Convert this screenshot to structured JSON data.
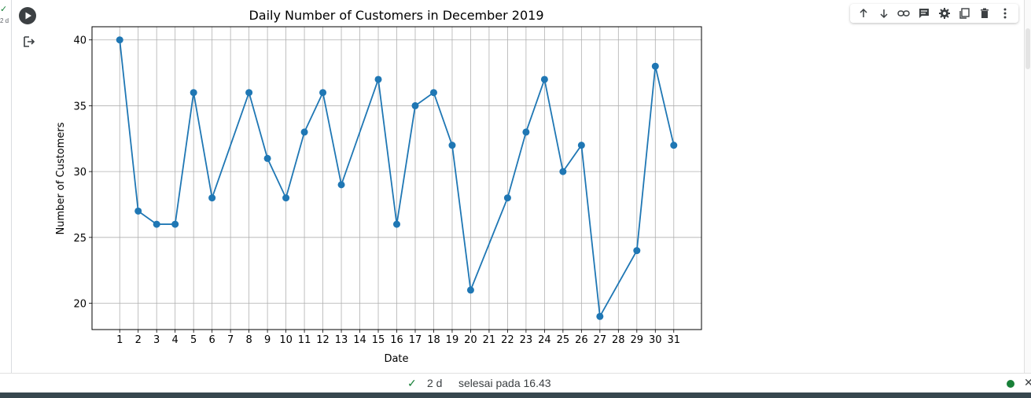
{
  "cell": {
    "exec_check": "✓",
    "exec_count": "2 d"
  },
  "toolbar": {
    "icons": [
      "arrow-up-icon",
      "arrow-down-icon",
      "link-icon",
      "comment-icon",
      "gear-icon",
      "mirror-cell-icon",
      "delete-icon",
      "more-vert-icon"
    ]
  },
  "status": {
    "check": "✓",
    "duration": "2 d",
    "message": "selesai pada 16.43",
    "dot_color": "#188038"
  },
  "chart_data": {
    "type": "line",
    "title": "Daily Number of Customers in December 2019",
    "xlabel": "Date",
    "ylabel": "Number of Customers",
    "x": [
      1,
      2,
      3,
      4,
      5,
      6,
      7,
      8,
      9,
      10,
      11,
      12,
      13,
      14,
      15,
      16,
      17,
      18,
      19,
      20,
      21,
      22,
      23,
      24,
      25,
      26,
      27,
      28,
      29,
      30,
      31
    ],
    "points": [
      {
        "x": 1,
        "y": 40
      },
      {
        "x": 2,
        "y": 27
      },
      {
        "x": 3,
        "y": 26
      },
      {
        "x": 4,
        "y": 26
      },
      {
        "x": 5,
        "y": 36
      },
      {
        "x": 6,
        "y": 28
      },
      {
        "x": 8,
        "y": 36
      },
      {
        "x": 9,
        "y": 31
      },
      {
        "x": 10,
        "y": 28
      },
      {
        "x": 11,
        "y": 33
      },
      {
        "x": 12,
        "y": 36
      },
      {
        "x": 13,
        "y": 29
      },
      {
        "x": 15,
        "y": 37
      },
      {
        "x": 16,
        "y": 26
      },
      {
        "x": 17,
        "y": 35
      },
      {
        "x": 18,
        "y": 36
      },
      {
        "x": 19,
        "y": 32
      },
      {
        "x": 20,
        "y": 21
      },
      {
        "x": 22,
        "y": 28
      },
      {
        "x": 23,
        "y": 33
      },
      {
        "x": 24,
        "y": 37
      },
      {
        "x": 25,
        "y": 30
      },
      {
        "x": 26,
        "y": 32
      },
      {
        "x": 27,
        "y": 19
      },
      {
        "x": 29,
        "y": 24
      },
      {
        "x": 30,
        "y": 38
      },
      {
        "x": 31,
        "y": 32
      }
    ],
    "yticks": [
      20,
      25,
      30,
      35,
      40
    ],
    "xlim": [
      -0.5,
      32.5
    ],
    "ylim": [
      18.0,
      41.0
    ],
    "grid": true,
    "line_color": "#1f77b4"
  }
}
